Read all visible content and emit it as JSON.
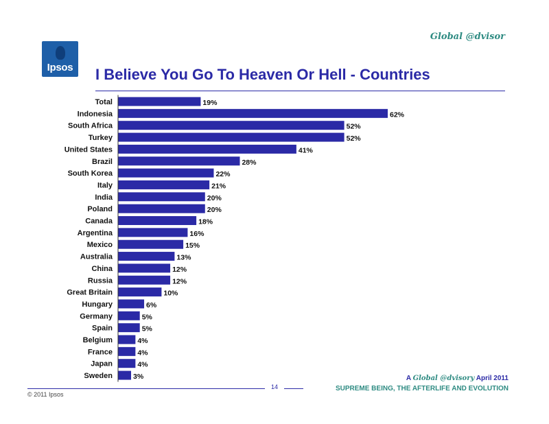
{
  "header": {
    "brand_tag": "Global @dvisor",
    "logo_text": "Ipsos",
    "title": "I Believe You Go To Heaven Or Hell - Countries"
  },
  "chart_data": {
    "type": "bar",
    "orientation": "horizontal",
    "title": "I Believe You Go To Heaven Or Hell - Countries",
    "categories": [
      "Total",
      "Indonesia",
      "South Africa",
      "Turkey",
      "United States",
      "Brazil",
      "South Korea",
      "Italy",
      "India",
      "Poland",
      "Canada",
      "Argentina",
      "Mexico",
      "Australia",
      "China",
      "Russia",
      "Great Britain",
      "Hungary",
      "Germany",
      "Spain",
      "Belgium",
      "France",
      "Japan",
      "Sweden"
    ],
    "values": [
      19,
      62,
      52,
      52,
      41,
      28,
      22,
      21,
      20,
      20,
      18,
      16,
      15,
      13,
      12,
      12,
      10,
      6,
      5,
      5,
      4,
      4,
      4,
      3
    ],
    "value_labels": [
      "19%",
      "62%",
      "52%",
      "52%",
      "41%",
      "28%",
      "22%",
      "21%",
      "20%",
      "20%",
      "18%",
      "16%",
      "15%",
      "13%",
      "12%",
      "12%",
      "10%",
      "6%",
      "5%",
      "5%",
      "4%",
      "4%",
      "4%",
      "3%"
    ],
    "xlim": [
      0,
      62
    ],
    "grid": false,
    "bar_color": "#2b2aa6"
  },
  "footer": {
    "page_number": "14",
    "copyright": "© 2011 Ipsos",
    "line1_prefix": "A",
    "line1_brand": "Global @dvisory",
    "line1_suffix": "April 2011",
    "line2": "SUPREME BEING, THE AFTERLIFE AND EVOLUTION"
  }
}
